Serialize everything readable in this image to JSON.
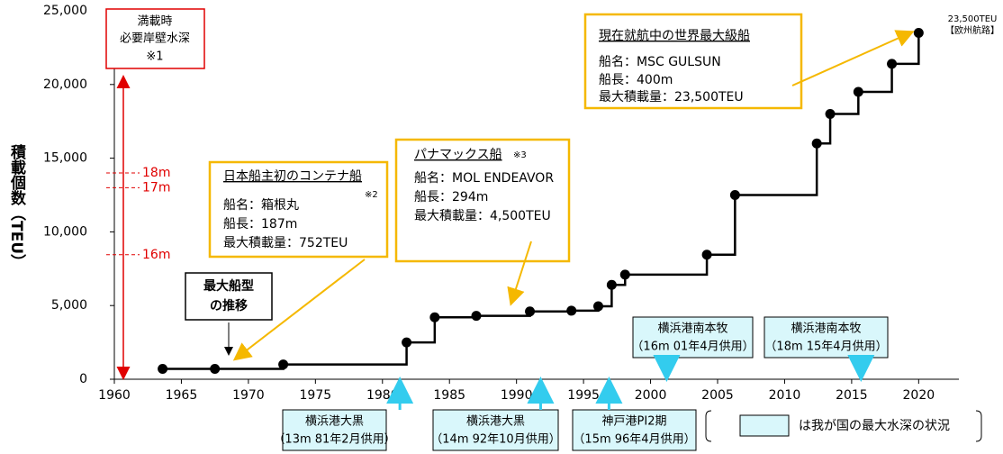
{
  "chart_data": {
    "type": "line",
    "y_label": "積載個数（TEU）",
    "xlim": [
      1960,
      2023
    ],
    "xticks": [
      1960,
      1965,
      1970,
      1975,
      1980,
      1985,
      1990,
      1995,
      2000,
      2005,
      2010,
      2015,
      2020
    ],
    "ylim": [
      0,
      25000
    ],
    "yticks": [
      0,
      {
        "value": 5000,
        "label": "5,000"
      },
      {
        "value": 10000,
        "label": "10,000"
      },
      {
        "value": 15000,
        "label": "15,000"
      },
      {
        "value": 20000,
        "label": "20,000"
      },
      {
        "value": 25000,
        "label": "25,000"
      }
    ],
    "series": [
      {
        "color": "#000000",
        "x": [
          1963.6,
          1967.5,
          1972.6,
          1981.8,
          1983.9,
          1987,
          1991,
          1994.1,
          1996.1,
          1997.1,
          1998.1,
          2004.2,
          2006.3,
          2012.4,
          2013.4,
          2015.5,
          2018,
          2020
        ],
        "values": [
          700,
          700,
          1000,
          2500,
          4200,
          4300,
          4600,
          4650,
          4950,
          6400,
          7100,
          8450,
          12500,
          16000,
          18000,
          19500,
          21400,
          23500
        ]
      }
    ],
    "depth_box": [
      "満載時",
      "必要岸壁水深",
      "※1"
    ],
    "depths": [
      {
        "value": 14000,
        "label": "18m"
      },
      {
        "value": 13000,
        "label": "17m"
      },
      {
        "value": 8450,
        "label": "16m"
      }
    ],
    "trend_box": [
      "最大船型",
      "の推移"
    ],
    "callouts": [
      {
        "title": "日本船主初のコンテナ船",
        "note": "※2",
        "lines": [
          "船名：箱根丸",
          "船長：187m",
          "最大積載量：752TEU"
        ]
      },
      {
        "title": "パナマックス船",
        "note": "※3",
        "lines": [
          "船名：MOL ENDEAVOR",
          "船長：294m",
          "最大積載量：4,500TEU"
        ]
      },
      {
        "title": "現在就航中の世界最大級船",
        "lines": [
          "船名：MSC GULSUN",
          "船長：400m",
          "最大積載量：23,500TEU"
        ]
      }
    ],
    "top_label": [
      "23,500TEU",
      "【欧州航路】"
    ],
    "ports": [
      {
        "x": 1981.3,
        "lines": [
          "横浜港大黒",
          "（13m 81年2月供用）"
        ]
      },
      {
        "x": 1991.8,
        "lines": [
          "横浜港大黒",
          "（14m 92年10月供用）"
        ]
      },
      {
        "x": 1996.9,
        "lines": [
          "神戸港PI2期",
          "（15m 96年4月供用）"
        ]
      },
      {
        "x": 2001.2,
        "lines": [
          "横浜港南本牧",
          "（16m 01年4月供用）"
        ]
      },
      {
        "x": 2015.7,
        "lines": [
          "横浜港南本牧",
          "（18m 15年4月供用）"
        ]
      }
    ],
    "legend": "は我が国の最大水深の状況"
  }
}
